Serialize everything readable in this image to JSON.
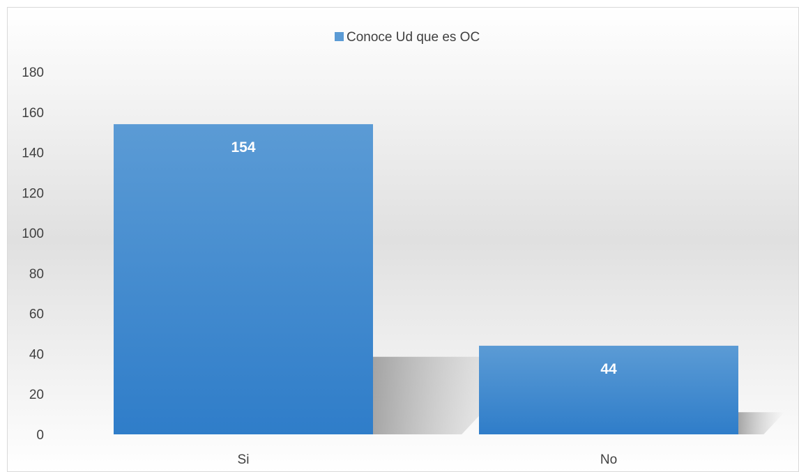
{
  "chart_data": {
    "type": "bar",
    "categories": [
      "Si",
      "No"
    ],
    "series": [
      {
        "name": "Conoce Ud que es OC",
        "values": [
          154,
          44
        ]
      }
    ],
    "ylim": [
      0,
      180
    ],
    "yticks": [
      0,
      20,
      40,
      60,
      80,
      100,
      120,
      140,
      160,
      180
    ],
    "data_labels": [
      "154",
      "44"
    ],
    "legend_position": "top-center",
    "grid": false,
    "colors": {
      "bar_top": "#5b9bd5",
      "bar_bottom": "#2f7dc9",
      "background_mid": "#e0e0e0"
    }
  }
}
